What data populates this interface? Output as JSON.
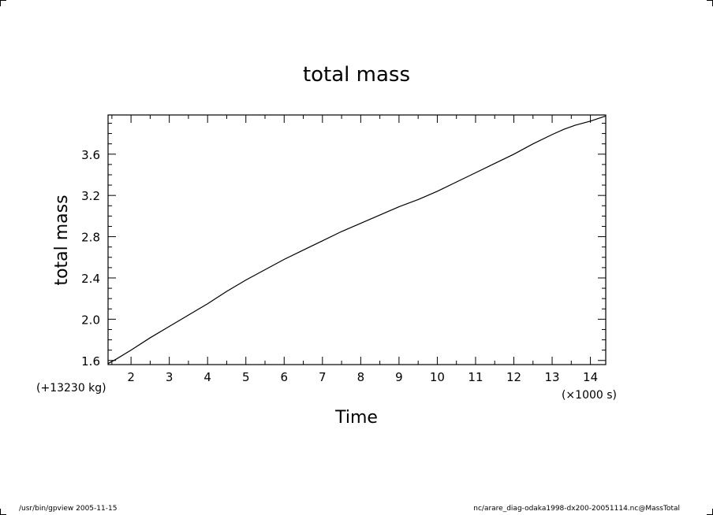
{
  "chart_data": {
    "type": "line",
    "title": "total mass",
    "xlabel": "Time",
    "ylabel": "total mass",
    "x_offset_label": "(+13230 kg)",
    "x_unit_label": "(×1000 s)",
    "xlim": [
      1.4,
      14.4
    ],
    "ylim": [
      1.56,
      3.98
    ],
    "xticks": [
      2,
      3,
      4,
      5,
      6,
      7,
      8,
      9,
      10,
      11,
      12,
      13,
      14
    ],
    "xtick_labels": [
      "2",
      "3",
      "4",
      "5",
      "6",
      "7",
      "8",
      "9",
      "10",
      "11",
      "12",
      "13",
      "14"
    ],
    "yticks": [
      1.6,
      2.0,
      2.4,
      2.8,
      3.2,
      3.6
    ],
    "ytick_labels": [
      "1.6",
      "2.0",
      "2.4",
      "2.8",
      "3.2",
      "3.6"
    ],
    "grid": false,
    "series": [
      {
        "x": [
          1.4,
          1.5,
          1.6,
          2.0,
          2.5,
          3.0,
          3.5,
          4.0,
          4.5,
          5.0,
          5.5,
          6.0,
          6.5,
          7.0,
          7.5,
          8.0,
          8.5,
          9.0,
          9.5,
          10.0,
          10.5,
          11.0,
          11.5,
          12.0,
          12.5,
          13.0,
          13.3,
          13.6,
          14.0,
          14.4
        ],
        "y": [
          1.57,
          1.59,
          1.61,
          1.7,
          1.82,
          1.93,
          2.04,
          2.15,
          2.27,
          2.38,
          2.48,
          2.58,
          2.67,
          2.76,
          2.85,
          2.93,
          3.01,
          3.09,
          3.16,
          3.24,
          3.33,
          3.42,
          3.51,
          3.6,
          3.7,
          3.79,
          3.84,
          3.88,
          3.92,
          3.97
        ]
      }
    ]
  },
  "footer": {
    "left": "/usr/bin/gpview  2005-11-15",
    "right": "nc/arare_diag-odaka1998-dx200-20051114.nc@MassTotal"
  }
}
